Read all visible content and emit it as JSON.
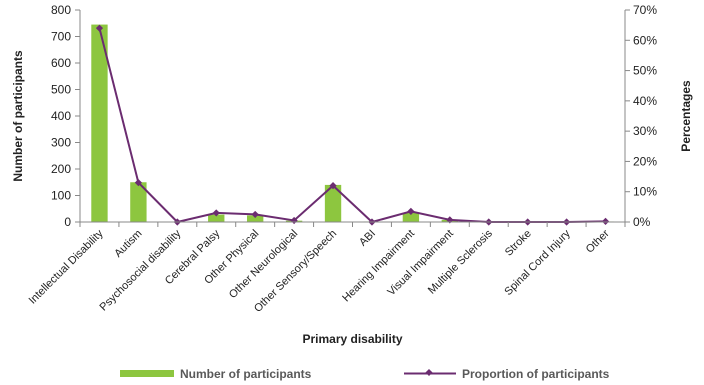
{
  "chart_data": {
    "type": "bar+line",
    "categories": [
      "Intellectual Disability",
      "Autism",
      "Psychosocial disability",
      "Cerebral Palsy",
      "Other Physical",
      "Other Neurological",
      "Other Sensory/Speech",
      "ABI",
      "Hearing Impairment",
      "Visual Impairment",
      "Multiple Sclerosis",
      "Stroke",
      "Spinal Cord Injury",
      "Other"
    ],
    "series": [
      {
        "name": "Number of participants",
        "type": "bar",
        "axis": "left",
        "color": "#8DC63F",
        "values": [
          745,
          150,
          0,
          28,
          25,
          5,
          140,
          2,
          35,
          8,
          1,
          0,
          0,
          2
        ]
      },
      {
        "name": "Proportion of participants",
        "type": "line",
        "axis": "right",
        "color": "#6B2C70",
        "values": [
          64,
          13,
          0,
          3,
          2.5,
          0.5,
          12,
          0,
          3.5,
          0.7,
          0,
          0,
          0,
          0.2
        ]
      }
    ],
    "xlabel": "Primary disability",
    "ylabel_left": "Number of participants",
    "ylabel_right": "Percentages",
    "ylim_left": [
      0,
      800
    ],
    "ylim_right": [
      0,
      70
    ],
    "yticks_left": [
      0,
      100,
      200,
      300,
      400,
      500,
      600,
      700,
      800
    ],
    "yticks_right": [
      "0%",
      "10%",
      "20%",
      "30%",
      "40%",
      "50%",
      "60%",
      "70%"
    ],
    "yticks_right_values": [
      0,
      10,
      20,
      30,
      40,
      50,
      60,
      70
    ],
    "legend_position": "bottom",
    "grid": false
  }
}
